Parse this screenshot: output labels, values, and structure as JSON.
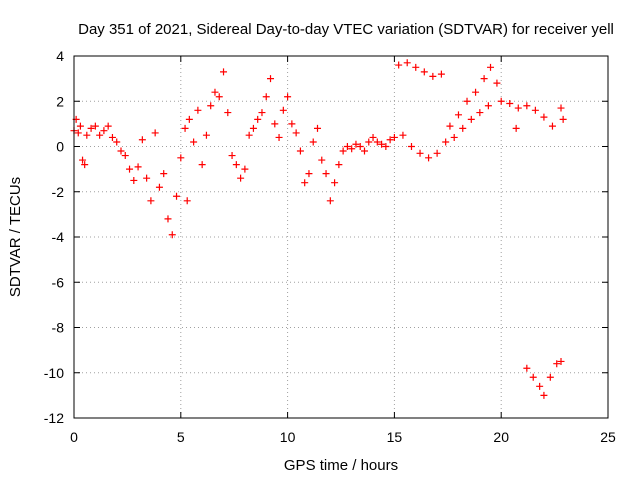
{
  "chart_data": {
    "type": "scatter",
    "title": "Day 351 of 2021, Sidereal Day-to-day VTEC variation (SDTVAR) for receiver yell",
    "xlabel": "GPS time / hours",
    "ylabel": "SDTVAR / TECUs",
    "xlim": [
      0,
      25
    ],
    "ylim": [
      -12,
      4
    ],
    "xticks": [
      0,
      5,
      10,
      15,
      20,
      25
    ],
    "yticks": [
      -12,
      -10,
      -8,
      -6,
      -4,
      -2,
      0,
      2,
      4
    ],
    "grid": true,
    "marker": "+",
    "color": "#ff0000",
    "series": [
      {
        "name": "SDTVAR",
        "points": [
          [
            0.0,
            0.7
          ],
          [
            0.1,
            1.2
          ],
          [
            0.2,
            0.6
          ],
          [
            0.3,
            0.9
          ],
          [
            0.4,
            -0.6
          ],
          [
            0.5,
            -0.8
          ],
          [
            0.6,
            0.5
          ],
          [
            0.8,
            0.8
          ],
          [
            1.0,
            0.9
          ],
          [
            1.2,
            0.5
          ],
          [
            1.4,
            0.7
          ],
          [
            1.6,
            0.9
          ],
          [
            1.8,
            0.4
          ],
          [
            2.0,
            0.2
          ],
          [
            2.2,
            -0.2
          ],
          [
            2.4,
            -0.4
          ],
          [
            2.6,
            -1.0
          ],
          [
            2.8,
            -1.5
          ],
          [
            3.0,
            -0.9
          ],
          [
            3.2,
            0.3
          ],
          [
            3.4,
            -1.4
          ],
          [
            3.6,
            -2.4
          ],
          [
            3.8,
            0.6
          ],
          [
            4.0,
            -1.8
          ],
          [
            4.2,
            -1.2
          ],
          [
            4.4,
            -3.2
          ],
          [
            4.6,
            -3.9
          ],
          [
            4.8,
            -2.2
          ],
          [
            5.0,
            -0.5
          ],
          [
            5.2,
            0.8
          ],
          [
            5.3,
            -2.4
          ],
          [
            5.4,
            1.2
          ],
          [
            5.6,
            0.2
          ],
          [
            5.8,
            1.6
          ],
          [
            6.0,
            -0.8
          ],
          [
            6.2,
            0.5
          ],
          [
            6.4,
            1.8
          ],
          [
            6.6,
            2.4
          ],
          [
            6.8,
            2.2
          ],
          [
            7.0,
            3.3
          ],
          [
            7.2,
            1.5
          ],
          [
            7.4,
            -0.4
          ],
          [
            7.6,
            -0.8
          ],
          [
            7.8,
            -1.4
          ],
          [
            8.0,
            -1.0
          ],
          [
            8.2,
            0.5
          ],
          [
            8.4,
            0.8
          ],
          [
            8.6,
            1.2
          ],
          [
            8.8,
            1.5
          ],
          [
            9.0,
            2.2
          ],
          [
            9.2,
            3.0
          ],
          [
            9.4,
            1.0
          ],
          [
            9.6,
            0.4
          ],
          [
            9.8,
            1.6
          ],
          [
            10.0,
            2.2
          ],
          [
            10.2,
            1.0
          ],
          [
            10.4,
            0.6
          ],
          [
            10.6,
            -0.2
          ],
          [
            10.8,
            -1.6
          ],
          [
            11.0,
            -1.2
          ],
          [
            11.2,
            0.2
          ],
          [
            11.4,
            0.8
          ],
          [
            11.6,
            -0.6
          ],
          [
            11.8,
            -1.2
          ],
          [
            12.0,
            -2.4
          ],
          [
            12.2,
            -1.6
          ],
          [
            12.4,
            -0.8
          ],
          [
            12.6,
            -0.2
          ],
          [
            12.8,
            0.0
          ],
          [
            13.0,
            -0.1
          ],
          [
            13.2,
            0.1
          ],
          [
            13.4,
            0.0
          ],
          [
            13.6,
            -0.2
          ],
          [
            13.8,
            0.2
          ],
          [
            14.0,
            0.4
          ],
          [
            14.2,
            0.2
          ],
          [
            14.4,
            0.1
          ],
          [
            14.6,
            0.0
          ],
          [
            14.8,
            0.3
          ],
          [
            15.0,
            0.4
          ],
          [
            15.2,
            3.6
          ],
          [
            15.6,
            3.7
          ],
          [
            16.0,
            3.5
          ],
          [
            16.4,
            3.3
          ],
          [
            16.8,
            3.1
          ],
          [
            17.2,
            3.2
          ],
          [
            15.4,
            0.5
          ],
          [
            15.8,
            0.0
          ],
          [
            16.2,
            -0.3
          ],
          [
            16.6,
            -0.5
          ],
          [
            17.0,
            -0.3
          ],
          [
            17.4,
            0.2
          ],
          [
            17.8,
            0.4
          ],
          [
            18.2,
            0.8
          ],
          [
            18.6,
            1.2
          ],
          [
            19.0,
            1.5
          ],
          [
            17.6,
            0.9
          ],
          [
            18.0,
            1.4
          ],
          [
            18.4,
            2.0
          ],
          [
            18.8,
            2.4
          ],
          [
            19.2,
            3.0
          ],
          [
            19.5,
            3.5
          ],
          [
            19.8,
            2.8
          ],
          [
            20.0,
            2.0
          ],
          [
            19.4,
            1.8
          ],
          [
            20.4,
            1.9
          ],
          [
            20.8,
            1.7
          ],
          [
            21.2,
            1.8
          ],
          [
            21.6,
            1.6
          ],
          [
            22.0,
            1.3
          ],
          [
            22.4,
            0.9
          ],
          [
            22.8,
            1.7
          ],
          [
            22.9,
            1.2
          ],
          [
            20.7,
            0.8
          ],
          [
            21.2,
            -9.8
          ],
          [
            21.5,
            -10.2
          ],
          [
            21.8,
            -10.6
          ],
          [
            22.0,
            -11.0
          ],
          [
            22.3,
            -10.2
          ],
          [
            22.6,
            -9.6
          ],
          [
            22.8,
            -9.5
          ]
        ]
      }
    ]
  }
}
